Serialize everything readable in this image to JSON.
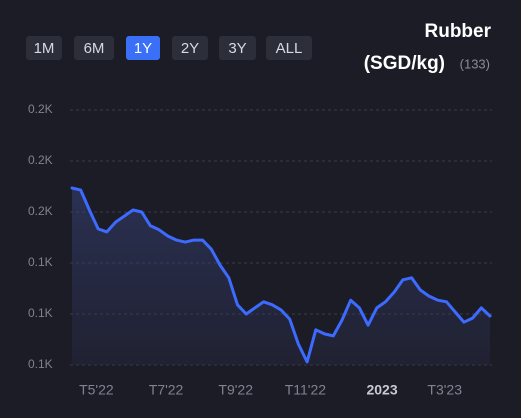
{
  "chart_data": {
    "type": "line",
    "title": "Rubber",
    "unit": "(SGD/kg)",
    "count": "(133)",
    "ranges": [
      "1M",
      "6M",
      "1Y",
      "2Y",
      "3Y",
      "ALL"
    ],
    "active_range": "1Y",
    "x": [
      4.3,
      4.55,
      4.8,
      5.05,
      5.3,
      5.55,
      5.8,
      6.05,
      6.3,
      6.55,
      6.8,
      7.05,
      7.3,
      7.55,
      7.8,
      8.05,
      8.3,
      8.55,
      8.8,
      9.05,
      9.3,
      9.55,
      9.8,
      10.05,
      10.3,
      10.55,
      10.8,
      11.05,
      11.3,
      11.55,
      11.8,
      12.05,
      12.3,
      12.55,
      12.8,
      13.05,
      13.3,
      13.55,
      13.8,
      14.05,
      14.3,
      14.55,
      14.8,
      15.05,
      15.3,
      15.55,
      15.8,
      16.05,
      16.3
    ],
    "series": [
      {
        "color": "#3d6bff",
        "values": [
          159.7,
          159.3,
          155.4,
          151.7,
          151.1,
          153.0,
          154.2,
          155.4,
          155.0,
          152.3,
          151.5,
          150.3,
          149.5,
          149.1,
          149.5,
          149.5,
          147.7,
          144.6,
          142.1,
          136.8,
          135.0,
          136.2,
          137.4,
          136.8,
          135.8,
          134.0,
          129.1,
          125.6,
          131.9,
          131.1,
          130.7,
          133.8,
          137.7,
          136.2,
          132.8,
          136.2,
          137.4,
          139.3,
          141.7,
          142.1,
          139.7,
          138.5,
          137.7,
          137.4,
          135.4,
          133.4,
          134.2,
          136.2,
          134.6
        ]
      }
    ],
    "xlim": [
      4.3,
      16.3
    ],
    "xticks": [
      {
        "value": 5,
        "label": "T5'22"
      },
      {
        "value": 7,
        "label": "T7'22"
      },
      {
        "value": 9,
        "label": "T9'22"
      },
      {
        "value": 11,
        "label": "T11'22"
      },
      {
        "value": 13,
        "label": "2023"
      },
      {
        "value": 15,
        "label": "T3'23"
      }
    ],
    "ylim": [
      125,
      175
    ],
    "yticks": [
      {
        "value": 125,
        "label": "0.1K"
      },
      {
        "value": 135,
        "label": "0.1K"
      },
      {
        "value": 145,
        "label": "0.1K"
      },
      {
        "value": 155,
        "label": "0.2K"
      },
      {
        "value": 165,
        "label": "0.2K"
      },
      {
        "value": 175,
        "label": "0.2K"
      }
    ],
    "grid": true
  }
}
